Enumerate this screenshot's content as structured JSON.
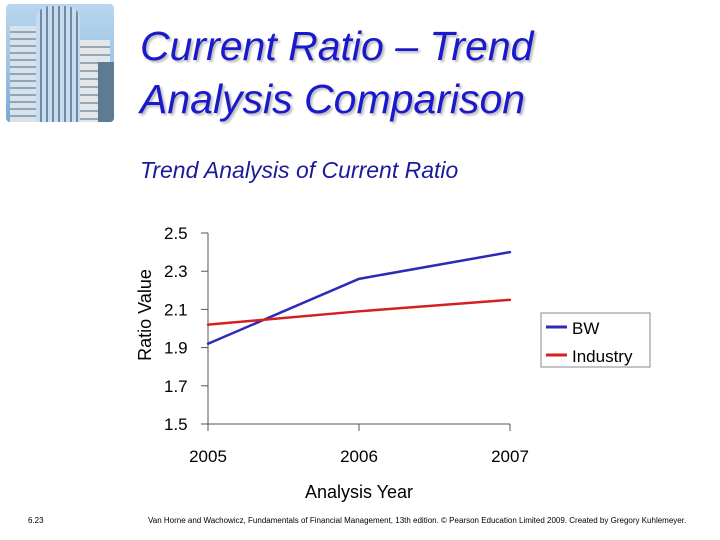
{
  "slide": {
    "title_line1": "Current Ratio – Trend",
    "title_line2": "Analysis Comparison",
    "slide_number": "6.23",
    "footer": "Van Horne and Wachowicz, Fundamentals of Financial Management, 13th edition. © Pearson Education Limited 2009. Created by Gregory Kuhlemeyer."
  },
  "colors": {
    "title": "#1a1acc",
    "axis": "#555555",
    "bw": "#2b2bb8",
    "industry": "#d42020"
  },
  "chart_data": {
    "type": "line",
    "title": "Trend Analysis of Current Ratio",
    "xlabel": "Analysis Year",
    "ylabel": "Ratio Value",
    "categories": [
      "2005",
      "2006",
      "2007"
    ],
    "ylim": [
      1.5,
      2.5
    ],
    "yticks": [
      "1.5",
      "1.7",
      "1.9",
      "2.1",
      "2.3",
      "2.5"
    ],
    "grid": false,
    "legend_position": "right",
    "series": [
      {
        "name": "BW",
        "values": [
          1.92,
          2.26,
          2.4
        ]
      },
      {
        "name": "Industry",
        "values": [
          2.02,
          2.09,
          2.15
        ]
      }
    ]
  }
}
